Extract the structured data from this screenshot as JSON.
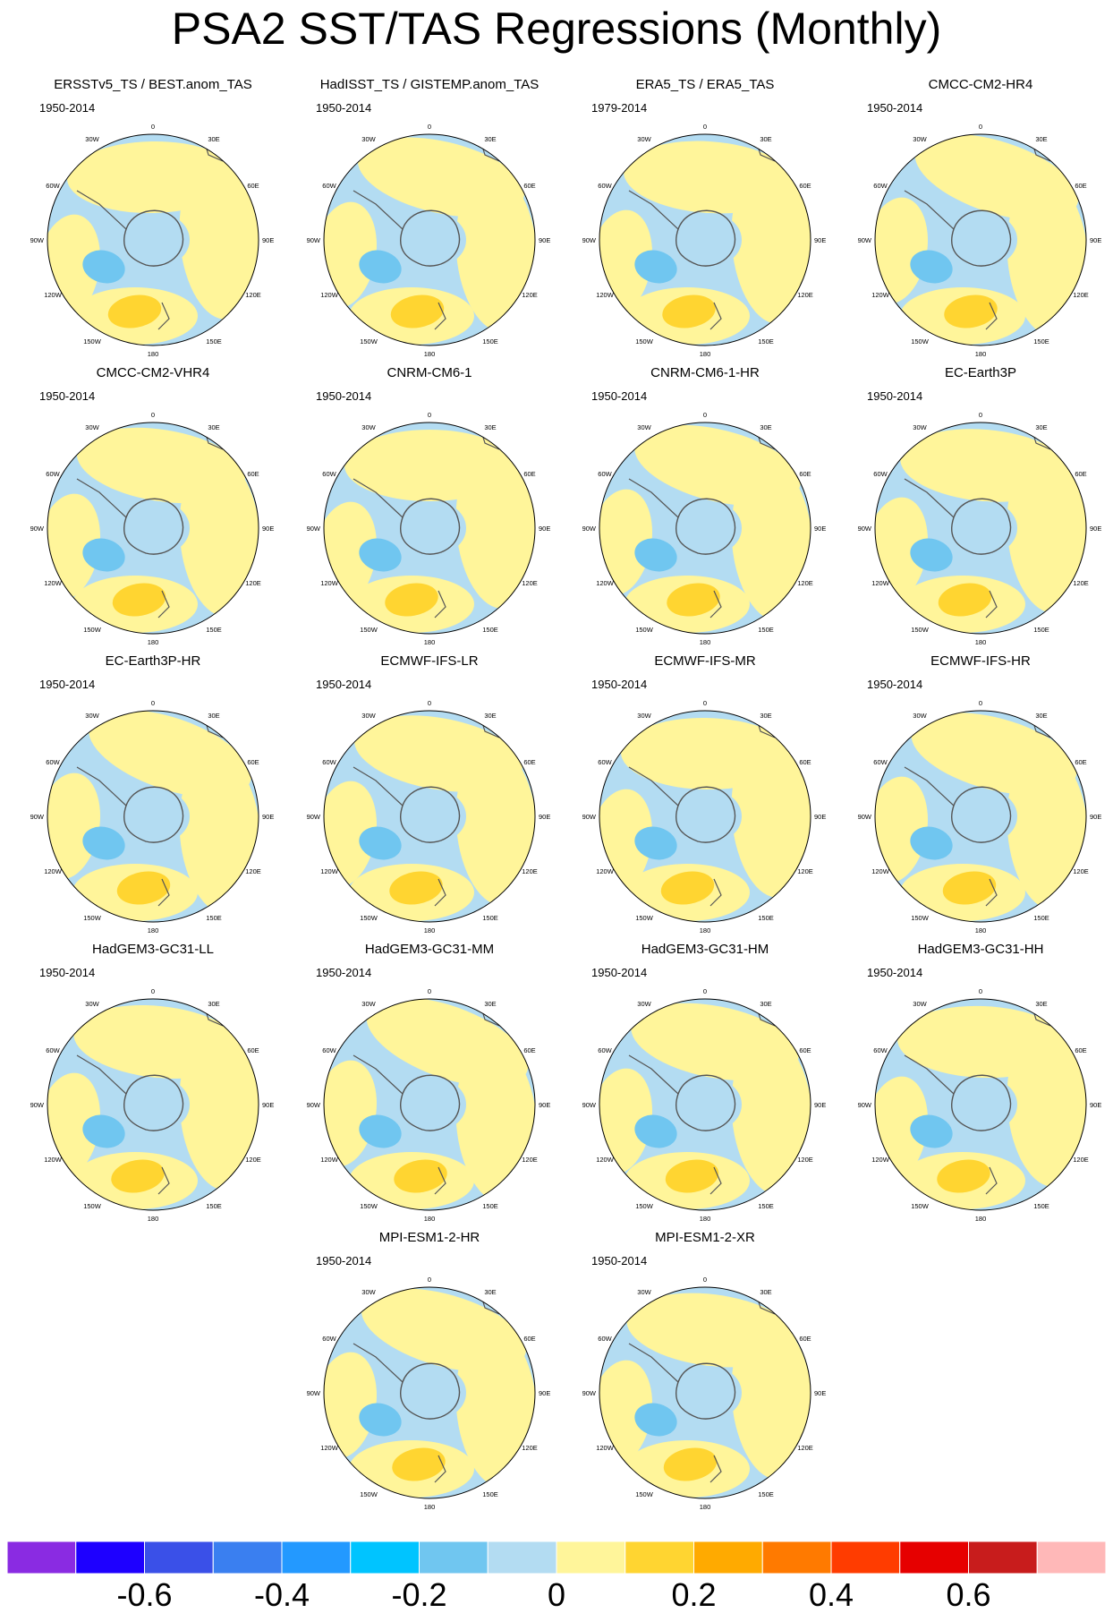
{
  "title": "PSA2 SST/TAS Regressions (Monthly)",
  "panels": [
    {
      "title": "ERSSTv5_TS / BEST.anom_TAS",
      "period": "1950-2014"
    },
    {
      "title": "HadISST_TS / GISTEMP.anom_TAS",
      "period": "1950-2014"
    },
    {
      "title": "ERA5_TS / ERA5_TAS",
      "period": "1979-2014"
    },
    {
      "title": "CMCC-CM2-HR4",
      "period": "1950-2014"
    },
    {
      "title": "CMCC-CM2-VHR4",
      "period": "1950-2014"
    },
    {
      "title": "CNRM-CM6-1",
      "period": "1950-2014"
    },
    {
      "title": "CNRM-CM6-1-HR",
      "period": "1950-2014"
    },
    {
      "title": "EC-Earth3P",
      "period": "1950-2014"
    },
    {
      "title": "EC-Earth3P-HR",
      "period": "1950-2014"
    },
    {
      "title": "ECMWF-IFS-LR",
      "period": "1950-2014"
    },
    {
      "title": "ECMWF-IFS-MR",
      "period": "1950-2014"
    },
    {
      "title": "ECMWF-IFS-HR",
      "period": "1950-2014"
    },
    {
      "title": "HadGEM3-GC31-LL",
      "period": "1950-2014"
    },
    {
      "title": "HadGEM3-GC31-MM",
      "period": "1950-2014"
    },
    {
      "title": "HadGEM3-GC31-HM",
      "period": "1950-2014"
    },
    {
      "title": "HadGEM3-GC31-HH",
      "period": "1950-2014"
    },
    {
      "title": "MPI-ESM1-2-HR",
      "period": "1950-2014"
    },
    {
      "title": "MPI-ESM1-2-XR",
      "period": "1950-2014"
    }
  ],
  "map_labels": {
    "top": "0",
    "bottom": "180",
    "upper_left": "30W",
    "upper_right": "30E",
    "mid_upper_left": "60W",
    "mid_upper_right": "60E",
    "left": "90W",
    "right": "90E",
    "mid_lower_left": "120W",
    "mid_lower_right": "120E",
    "lower_left": "150W",
    "lower_right": "150E"
  },
  "colorbar": {
    "colors": [
      "#8a2be2",
      "#1e00ff",
      "#3a50e8",
      "#3a7ff0",
      "#2399ff",
      "#00c4ff",
      "#70c6f0",
      "#b3dcf2",
      "#fff59a",
      "#ffd531",
      "#ffaa00",
      "#ff7a00",
      "#ff3c00",
      "#e60000",
      "#c81c1c",
      "#ffb8b8"
    ],
    "tick_labels": [
      "-0.6",
      "-0.4",
      "-0.2",
      "0",
      "0.2",
      "0.4",
      "0.6"
    ],
    "ticks": [
      -0.6,
      -0.4,
      -0.2,
      0,
      0.2,
      0.4,
      0.6
    ],
    "min": -0.8,
    "max": 0.8
  },
  "palette": {
    "ocean_neg": "#b3dcf2",
    "ocean_pos": "#fff59a",
    "strong_neg": "#70c6f0",
    "strong_pos": "#ffd531",
    "coast": "#555555"
  }
}
